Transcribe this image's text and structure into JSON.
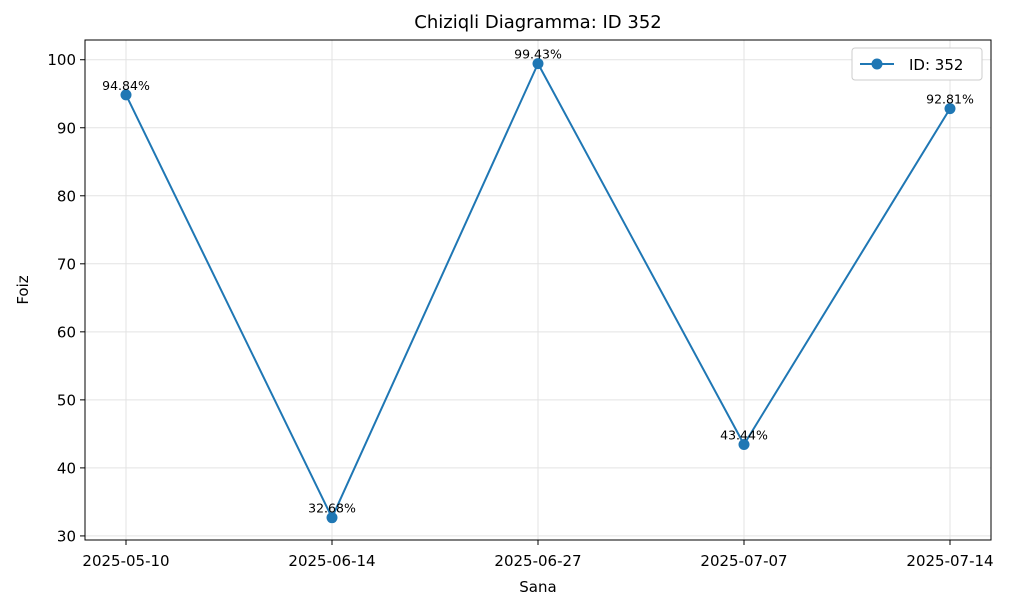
{
  "chart_data": {
    "type": "line",
    "title": "Chiziqli Diagramma: ID 352",
    "xlabel": "Sana",
    "ylabel": "Foiz",
    "categories": [
      "2025-05-10",
      "2025-06-14",
      "2025-06-27",
      "2025-07-07",
      "2025-07-14"
    ],
    "series": [
      {
        "name": "ID: 352",
        "values": [
          94.84,
          32.68,
          99.43,
          43.44,
          92.81
        ],
        "labels": [
          "94.84%",
          "32.68%",
          "99.43%",
          "43.44%",
          "92.81%"
        ],
        "color": "#1f77b4",
        "marker": "circle"
      }
    ],
    "yticks": [
      "30",
      "40",
      "50",
      "60",
      "70",
      "80",
      "90",
      "100"
    ],
    "ylim": [
      29.4,
      102.9
    ],
    "grid": true,
    "legend_position": "top-right"
  }
}
